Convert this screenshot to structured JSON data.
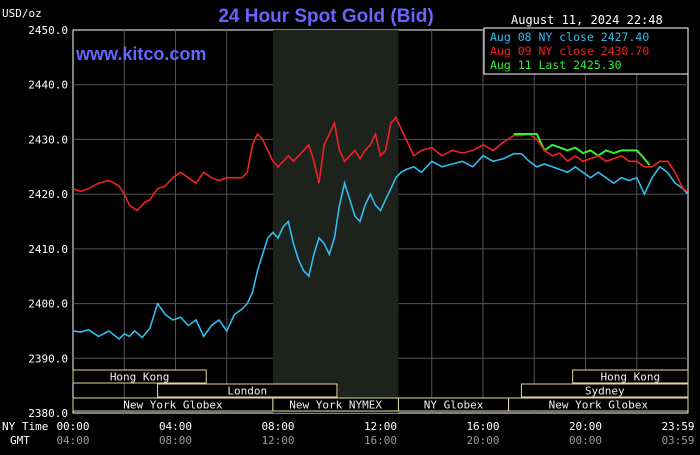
{
  "chart_data": {
    "type": "line",
    "title": "24 Hour Spot Gold (Bid)",
    "brand": "www.kitco.com",
    "ylabel": "USD/oz",
    "timestamp": "August 11, 2024 22:48",
    "ylim": [
      2380,
      2450
    ],
    "xlim": [
      0,
      24
    ],
    "y_ticks": [
      "2450.0",
      "2440.0",
      "2430.0",
      "2420.0",
      "2410.0",
      "2400.0",
      "2390.0",
      "2380.0"
    ],
    "x_axis_rows": {
      "ny_label": "NY Time",
      "gmt_label": "GMT",
      "ny_ticks": [
        "00:00",
        "04:00",
        "08:00",
        "12:00",
        "16:00",
        "20:00",
        "23:59"
      ],
      "gmt_ticks": [
        "04:00",
        "08:00",
        "12:00",
        "16:00",
        "20:00",
        "00:00",
        "03:59"
      ]
    },
    "legend": [
      {
        "text": "Aug 08 NY close 2427.40",
        "color": "#33bbee"
      },
      {
        "text": "Aug 09 NY close 2430.70",
        "color": "#ee2222"
      },
      {
        "text": "Aug 11 Last 2425.30",
        "color": "#33ee33"
      }
    ],
    "sessions": [
      {
        "label": "Hong Kong",
        "start": 0,
        "end": 5.2
      },
      {
        "label": "London",
        "start": 3.3,
        "end": 10.3
      },
      {
        "label": "New York Globex",
        "start": 0,
        "end": 7.8
      },
      {
        "label": "New York NYMEX",
        "start": 7.8,
        "end": 12.7
      },
      {
        "label": "NY Globex",
        "start": 12.7,
        "end": 17.0
      },
      {
        "label": "Hong Kong",
        "start": 19.5,
        "end": 24
      },
      {
        "label": "Sydney",
        "start": 17.5,
        "end": 24
      },
      {
        "label": "New York Globex",
        "start": 17.0,
        "end": 24
      }
    ],
    "shaded_period": [
      7.8,
      12.7
    ],
    "series": [
      {
        "name": "Aug 08 NY close 2427.40",
        "color": "#33bbee",
        "x": [
          0,
          0.3,
          0.6,
          1.0,
          1.4,
          1.8,
          2.0,
          2.2,
          2.4,
          2.7,
          3.0,
          3.3,
          3.6,
          3.9,
          4.2,
          4.5,
          4.8,
          5.1,
          5.4,
          5.7,
          6.0,
          6.3,
          6.6,
          6.8,
          7.0,
          7.2,
          7.4,
          7.6,
          7.8,
          8.0,
          8.2,
          8.4,
          8.6,
          8.8,
          9.0,
          9.2,
          9.4,
          9.6,
          9.8,
          10.0,
          10.2,
          10.4,
          10.6,
          10.8,
          11.0,
          11.2,
          11.4,
          11.6,
          11.8,
          12.0,
          12.2,
          12.4,
          12.6,
          12.8,
          13.0,
          13.3,
          13.6,
          14.0,
          14.4,
          14.8,
          15.2,
          15.6,
          16.0,
          16.4,
          16.8,
          17.2,
          17.5
        ],
        "y": [
          2395,
          2394.8,
          2395.2,
          2394,
          2395,
          2393.5,
          2394.5,
          2394,
          2395,
          2393.8,
          2395.5,
          2400,
          2398,
          2397,
          2397.5,
          2396,
          2397,
          2394,
          2396,
          2397,
          2395,
          2398,
          2399,
          2400,
          2402,
          2406,
          2409,
          2412,
          2413,
          2412,
          2414,
          2415,
          2411,
          2408,
          2406,
          2405,
          2409,
          2412,
          2411,
          2409,
          2412,
          2418,
          2422,
          2419,
          2416,
          2415,
          2418,
          2420,
          2418,
          2417,
          2419,
          2421,
          2423,
          2424,
          2424.5,
          2425,
          2424,
          2426,
          2425,
          2425.5,
          2426,
          2425,
          2427,
          2426,
          2426.5,
          2427.4,
          2427.4
        ]
      },
      {
        "name": "Aug 09 NY close 2430.70",
        "color": "#ee2222",
        "x": [
          0,
          0.3,
          0.6,
          1.0,
          1.4,
          1.8,
          2.0,
          2.2,
          2.5,
          2.8,
          3.0,
          3.3,
          3.6,
          3.9,
          4.2,
          4.5,
          4.8,
          5.1,
          5.4,
          5.7,
          6.0,
          6.3,
          6.6,
          6.8,
          7.0,
          7.2,
          7.4,
          7.6,
          7.8,
          8.0,
          8.2,
          8.4,
          8.6,
          8.8,
          9.0,
          9.2,
          9.4,
          9.6,
          9.8,
          10.0,
          10.2,
          10.4,
          10.6,
          10.8,
          11.0,
          11.2,
          11.4,
          11.6,
          11.8,
          12.0,
          12.2,
          12.4,
          12.6,
          12.8,
          13.0,
          13.3,
          13.6,
          14.0,
          14.4,
          14.8,
          15.2,
          15.6,
          16.0,
          16.4,
          16.8,
          17.2,
          17.5
        ],
        "y": [
          2421,
          2420.5,
          2421,
          2422,
          2422.5,
          2421.5,
          2420,
          2418,
          2417,
          2418.5,
          2419,
          2421,
          2421.5,
          2423,
          2424,
          2423,
          2422,
          2424,
          2423,
          2422.5,
          2423,
          2423,
          2423,
          2424,
          2429,
          2431,
          2430,
          2428,
          2426,
          2425,
          2426,
          2427,
          2426,
          2427,
          2428,
          2429,
          2426,
          2422,
          2429,
          2431,
          2433,
          2428,
          2426,
          2427,
          2428,
          2426.5,
          2428,
          2429,
          2431,
          2427,
          2428,
          2433,
          2434,
          2432,
          2430,
          2427,
          2428,
          2428.5,
          2427,
          2428,
          2427.5,
          2428,
          2429,
          2428,
          2429.5,
          2430.7,
          2430.7
        ]
      },
      {
        "name": "Aug 11 Last 2425.30",
        "color": "#33ee33",
        "x": [
          17.5,
          17.8,
          18.1,
          18.4,
          18.7,
          19.0,
          19.3,
          19.6,
          19.9,
          20.2,
          20.5,
          20.8,
          21.1,
          21.4,
          21.7,
          22.0,
          22.2,
          22.5
        ],
        "y": [
          2431,
          2431,
          2431,
          2428,
          2429,
          2428.5,
          2428,
          2428.5,
          2427.5,
          2428,
          2427,
          2428,
          2427.5,
          2428,
          2428,
          2428,
          2427,
          2425.3
        ]
      },
      {
        "name": "Aug 10 cyan",
        "color": "#33bbee",
        "x": [
          17.5,
          17.8,
          18.1,
          18.4,
          18.7,
          19.0,
          19.3,
          19.6,
          19.9,
          20.2,
          20.5,
          20.8,
          21.1,
          21.4,
          21.7,
          22.0,
          22.3,
          22.6,
          22.9,
          23.2,
          23.5,
          23.8,
          23.99
        ],
        "y": [
          2427.4,
          2426,
          2425,
          2425.5,
          2425,
          2424.5,
          2424,
          2425,
          2424,
          2423,
          2424,
          2423,
          2422,
          2423,
          2422.5,
          2423,
          2420,
          2423,
          2425,
          2424,
          2422,
          2421,
          2420
        ]
      },
      {
        "name": "Aug 10 red",
        "color": "#ee2222",
        "x": [
          17.5,
          17.8,
          18.1,
          18.4,
          18.7,
          19.0,
          19.3,
          19.6,
          19.9,
          20.2,
          20.5,
          20.8,
          21.1,
          21.4,
          21.7,
          22.0,
          22.3,
          22.6,
          22.9,
          23.2,
          23.5,
          23.8,
          23.99
        ],
        "y": [
          2430.7,
          2431,
          2430,
          2428,
          2427,
          2427.5,
          2426,
          2427,
          2426,
          2426.5,
          2427,
          2426,
          2426.5,
          2427,
          2426,
          2426,
          2425,
          2425,
          2426,
          2426,
          2424,
          2421,
          2420.5
        ]
      }
    ]
  }
}
